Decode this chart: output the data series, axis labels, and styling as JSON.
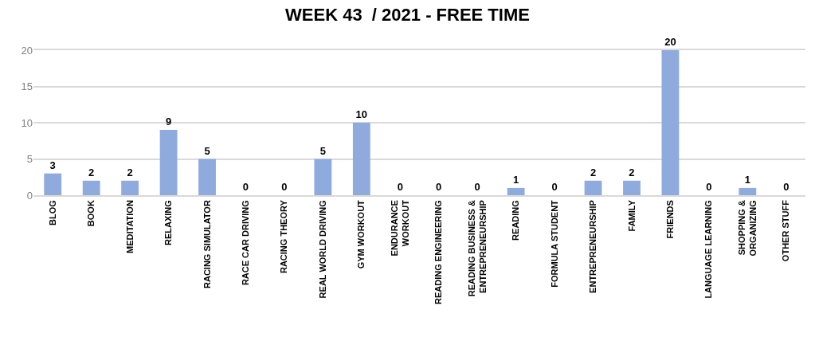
{
  "chart_data": {
    "type": "bar",
    "title": "WEEK 43  / 2021 - FREE TIME",
    "categories": [
      "BLOG",
      "BOOK",
      "MEDITATION",
      "RELAXING",
      "RACING SIMULATOR",
      "RACE CAR DRIVING",
      "RACING THEORY",
      "REAL WORLD DRIVING",
      "GYM WORKOUT",
      "ENDURANCE\nWORKOUT",
      "READING ENGINEERING",
      "READING BUSINESS &\nENTREPRENEURSHIP",
      "READING",
      "FORMULA STUDENT",
      "ENTREPRENEURSHIP",
      "FAMILY",
      "FRIENDS",
      "LANGUAGE LEARNING",
      "SHOPPING &\nORGANIZING",
      "OTHER STUFF"
    ],
    "values": [
      3,
      2,
      2,
      9,
      5,
      0,
      0,
      5,
      10,
      0,
      0,
      0,
      1,
      0,
      2,
      2,
      20,
      0,
      1,
      0
    ],
    "color": "#8faadc",
    "ylim": [
      0,
      20
    ],
    "yticks": [
      0,
      5,
      10,
      15,
      20
    ],
    "grid": "y",
    "data_labels": true,
    "legend": false
  }
}
